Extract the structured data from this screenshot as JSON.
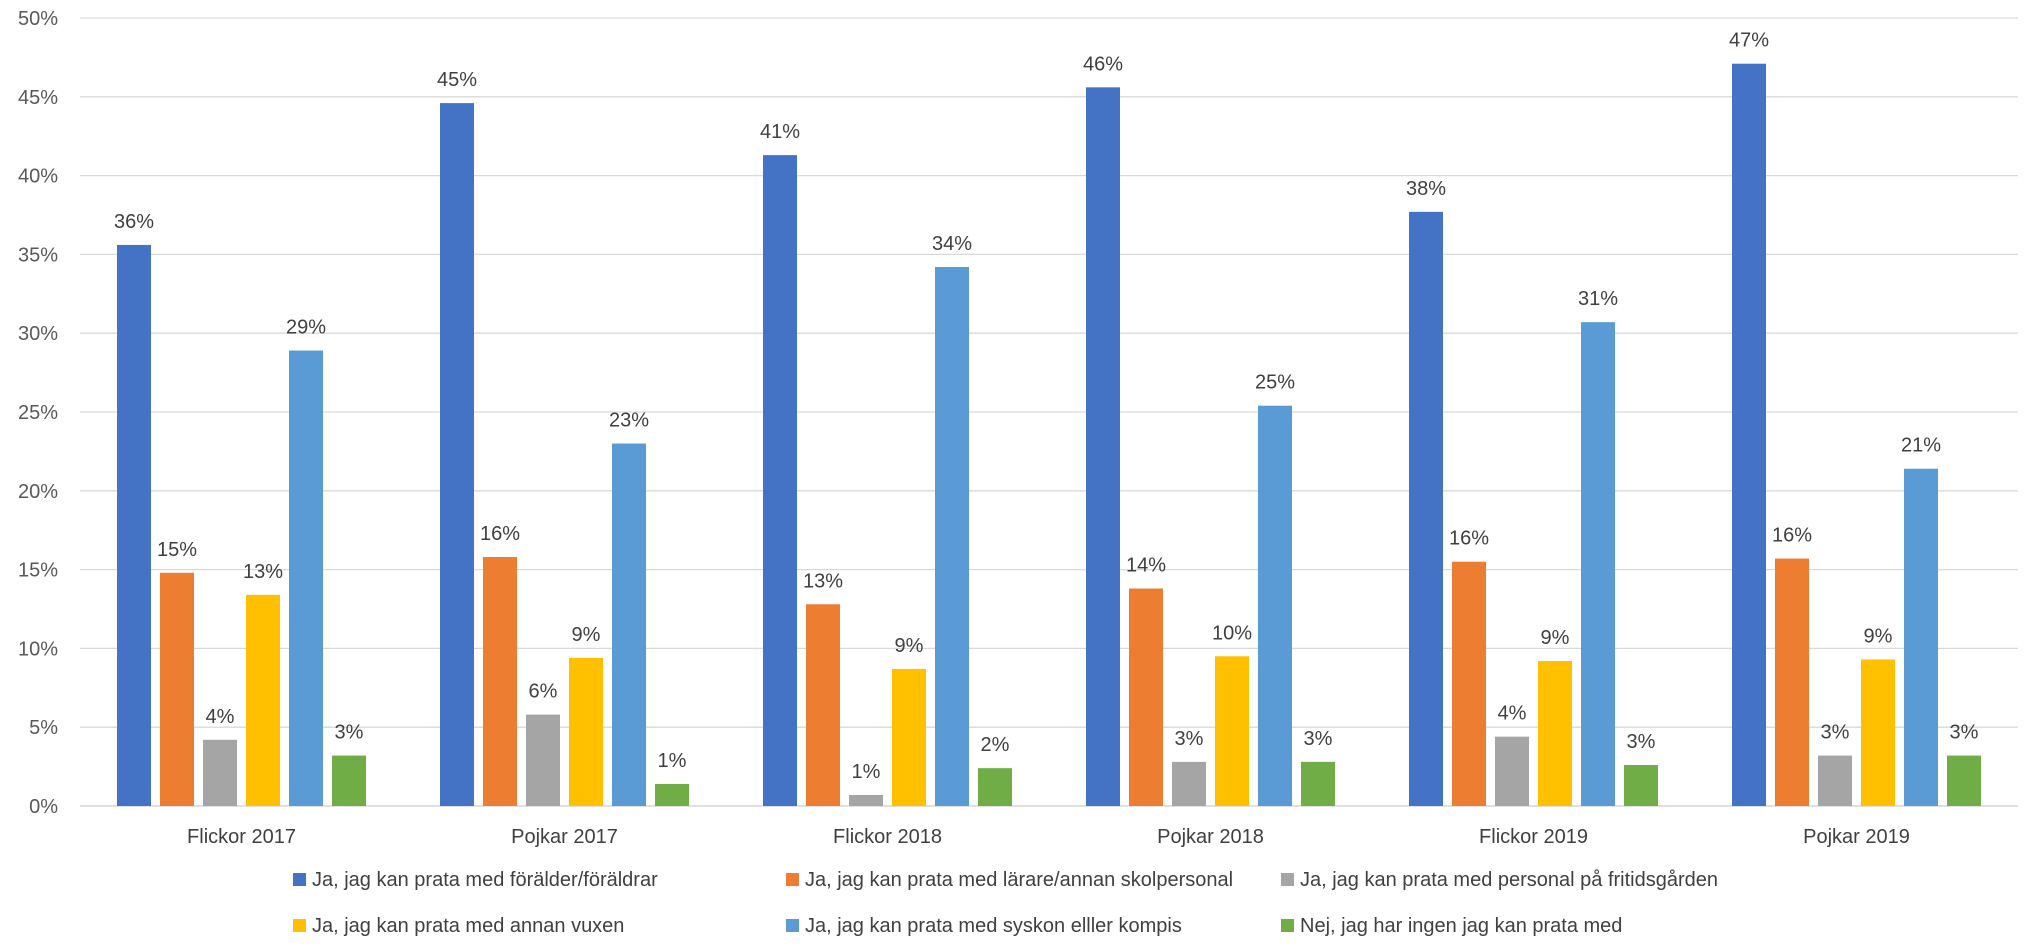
{
  "chart_data": {
    "type": "bar",
    "title": "",
    "xlabel": "",
    "ylabel": "",
    "ylim": [
      0,
      50
    ],
    "y_ticks": [
      "0%",
      "5%",
      "10%",
      "15%",
      "20%",
      "25%",
      "30%",
      "35%",
      "40%",
      "45%",
      "50%"
    ],
    "y_tick_values": [
      0,
      5,
      10,
      15,
      20,
      25,
      30,
      35,
      40,
      45,
      50
    ],
    "grid": true,
    "legend_position": "bottom",
    "categories": [
      "Flickor 2017",
      "Pojkar 2017",
      "Flickor 2018",
      "Pojkar 2018",
      "Flickor 2019",
      "Pojkar 2019"
    ],
    "series": [
      {
        "name": "Ja, jag kan prata med förälder/föräldrar",
        "color": "#4472C4",
        "values": [
          35.6,
          44.6,
          41.3,
          45.6,
          37.7,
          47.1
        ],
        "labels": [
          "36%",
          "45%",
          "41%",
          "46%",
          "38%",
          "47%"
        ]
      },
      {
        "name": "Ja, jag kan prata med lärare/annan skolpersonal",
        "color": "#ED7D31",
        "values": [
          14.8,
          15.8,
          12.8,
          13.8,
          15.5,
          15.7
        ],
        "labels": [
          "15%",
          "16%",
          "13%",
          "14%",
          "16%",
          "16%"
        ]
      },
      {
        "name": "Ja, jag kan prata med personal på fritidsgården",
        "color": "#A5A5A5",
        "values": [
          4.2,
          5.8,
          0.7,
          2.8,
          4.4,
          3.2
        ],
        "labels": [
          "4%",
          "6%",
          "1%",
          "3%",
          "4%",
          "3%"
        ]
      },
      {
        "name": "Ja, jag kan prata med annan vuxen",
        "color": "#FFC000",
        "values": [
          13.4,
          9.4,
          8.7,
          9.5,
          9.2,
          9.3
        ],
        "labels": [
          "13%",
          "9%",
          "9%",
          "10%",
          "9%",
          "9%"
        ]
      },
      {
        "name": "Ja, jag kan prata med syskon elller kompis",
        "color": "#5B9BD5",
        "values": [
          28.9,
          23.0,
          34.2,
          25.4,
          30.7,
          21.4
        ],
        "labels": [
          "29%",
          "23%",
          "34%",
          "25%",
          "31%",
          "21%"
        ]
      },
      {
        "name": "Nej, jag har ingen jag kan prata med",
        "color": "#70AD47",
        "values": [
          3.2,
          1.4,
          2.4,
          2.8,
          2.6,
          3.2
        ],
        "labels": [
          "3%",
          "1%",
          "2%",
          "3%",
          "3%",
          "3%"
        ]
      }
    ]
  }
}
